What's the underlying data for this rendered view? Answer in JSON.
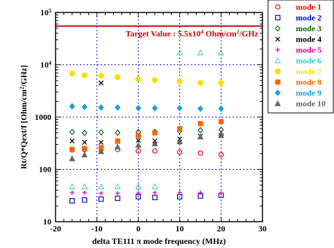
{
  "chart_data": {
    "type": "scatter",
    "xlabel_parts": [
      "delta TE111 ",
      "π",
      " mode frequency (MHz)"
    ],
    "ylabel_parts": [
      "Rt/Q*Qext/f [Ohm/cm",
      "2",
      "/GHz]"
    ],
    "xlim": [
      -20,
      30
    ],
    "ylim": [
      10,
      100000
    ],
    "yscale": "log",
    "grid": true,
    "legend_position": "right",
    "x_ticks": [
      "-20",
      "-10",
      "0",
      "10",
      "20",
      "30"
    ],
    "y_ticks": [
      {
        "value": 10,
        "base": "10",
        "exp": ""
      },
      {
        "value": 100,
        "base": "100",
        "exp": ""
      },
      {
        "value": 1000,
        "base": "1000",
        "exp": ""
      },
      {
        "value": 10000,
        "base": "10",
        "exp": "4"
      },
      {
        "value": 100000,
        "base": "10",
        "exp": "5"
      }
    ],
    "target": {
      "value": 55000,
      "label_parts": [
        "Target Value : 5.5x10",
        "4",
        " Ohm/cm",
        "2",
        "/GHz"
      ],
      "color": "#cc0000"
    },
    "series": [
      {
        "name": "mode 1",
        "color": "#ff0000",
        "marker": "circle-open",
        "x": [
          -16,
          -13,
          -9,
          -5,
          0,
          4,
          10,
          15,
          20
        ],
        "y": [
          235,
          240,
          240,
          240,
          225,
          225,
          215,
          205,
          190
        ]
      },
      {
        "name": "mode 2",
        "color": "#0000cc",
        "marker": "square-open",
        "x": [
          -16,
          -13,
          -9,
          -5,
          0,
          4,
          10,
          15,
          20
        ],
        "y": [
          25,
          26,
          27,
          28,
          30,
          29,
          30,
          31,
          32
        ]
      },
      {
        "name": "mode 3",
        "color": "#006600",
        "marker": "diamond-open",
        "x": [
          -16,
          -13,
          -9,
          -5,
          0,
          4,
          10,
          15,
          20
        ],
        "y": [
          520,
          500,
          510,
          500,
          520,
          520,
          540,
          560,
          570
        ]
      },
      {
        "name": "mode 4",
        "color": "#000000",
        "marker": "cross",
        "x": [
          -16,
          -13,
          -9,
          -9,
          -5,
          0,
          4,
          10,
          15,
          20
        ],
        "y": [
          350,
          330,
          330,
          4500,
          340,
          360,
          350,
          380,
          430,
          440
        ]
      },
      {
        "name": "mode 5",
        "color": "#e60099",
        "marker": "plus",
        "x": [
          -16,
          -13,
          -9,
          -5,
          0,
          4,
          10,
          15,
          20
        ],
        "y": [
          36,
          36,
          35,
          35,
          35,
          36,
          36,
          36,
          35
        ]
      },
      {
        "name": "mode 6",
        "color": "#33cccc",
        "marker": "triangle-open",
        "x": [
          -16,
          -13,
          -9,
          -5,
          0,
          4,
          10,
          15,
          20
        ],
        "y": [
          47,
          47,
          47,
          47,
          47,
          47,
          17000,
          17000,
          17000
        ]
      },
      {
        "name": "mode 7",
        "color": "#ffdd00",
        "marker": "circle-filled",
        "x": [
          -16,
          -13,
          -9,
          -5,
          0,
          4,
          10,
          15,
          20
        ],
        "y": [
          6800,
          6300,
          6200,
          5800,
          5300,
          5100,
          4800,
          4500,
          4500
        ]
      },
      {
        "name": "mode 8",
        "color": "#ff6600",
        "marker": "square-filled",
        "x": [
          -16,
          -13,
          -9,
          -5,
          0,
          4,
          10,
          15,
          20
        ],
        "y": [
          240,
          250,
          260,
          350,
          450,
          500,
          600,
          750,
          820
        ]
      },
      {
        "name": "mode 9",
        "color": "#1a9fe0",
        "marker": "diamond-filled",
        "x": [
          -16,
          -13,
          -9,
          -5,
          0,
          4,
          10,
          15,
          20
        ],
        "y": [
          1600,
          1560,
          1520,
          1520,
          1480,
          1480,
          1480,
          1450,
          1450
        ]
      },
      {
        "name": "mode 10",
        "color": "#666666",
        "marker": "triangle-filled",
        "x": [
          -16,
          -13,
          -9,
          -5,
          0,
          4,
          10,
          15,
          20
        ],
        "y": [
          160,
          190,
          220,
          270,
          290,
          310,
          340,
          420,
          480
        ]
      }
    ]
  }
}
